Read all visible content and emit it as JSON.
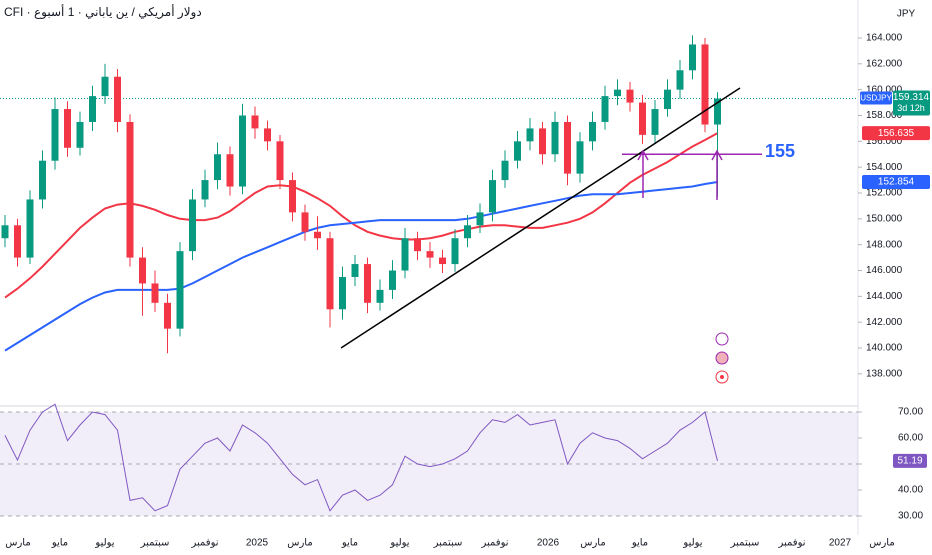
{
  "chart_data": [
    {
      "type": "candlestick",
      "title": "دولار أمريكي / ين ياباني · 1 أسبوع · CFI",
      "symbol": "USDJPY",
      "currency": "JPY",
      "countdown": "3d 12h",
      "x": [
        0,
        1,
        2,
        3,
        4,
        5,
        6,
        7,
        8,
        9,
        10,
        11,
        12,
        13,
        14,
        15,
        16,
        17,
        18,
        19,
        20,
        21,
        22,
        23,
        24,
        25,
        26,
        27,
        28,
        29,
        30,
        31,
        32,
        33,
        34,
        35,
        36,
        37,
        38,
        39,
        40,
        41,
        42,
        43,
        44,
        45,
        46,
        47,
        48,
        49,
        50,
        51,
        52,
        53,
        54,
        55,
        56,
        57
      ],
      "open": [
        148.5,
        149.5,
        147.0,
        151.5,
        154.5,
        158.5,
        155.5,
        157.5,
        159.5,
        161.0,
        157.5,
        147.0,
        145.0,
        143.5,
        141.5,
        147.5,
        151.5,
        153.0,
        155.0,
        152.5,
        158.0,
        157.0,
        156.0,
        153.0,
        150.5,
        149.0,
        148.5,
        143.0,
        145.5,
        146.5,
        143.5,
        144.5,
        146.0,
        148.5,
        147.5,
        147.0,
        146.5,
        148.5,
        149.5,
        150.5,
        153.0,
        154.5,
        156.0,
        157.0,
        155.0,
        157.5,
        153.5,
        156.0,
        157.5,
        159.5,
        160.0,
        159.0,
        156.5,
        158.5,
        160.0,
        161.5,
        163.5,
        157.3
      ],
      "high": [
        150.3,
        150.0,
        152.2,
        155.3,
        159.4,
        159.1,
        158.3,
        160.3,
        162.0,
        161.6,
        158.1,
        147.8,
        146.0,
        144.2,
        148.2,
        152.3,
        153.8,
        155.9,
        155.6,
        158.9,
        158.7,
        157.6,
        156.5,
        153.6,
        151.1,
        150.2,
        149.0,
        146.3,
        147.2,
        147.0,
        145.3,
        146.8,
        149.3,
        149.0,
        148.2,
        147.6,
        149.2,
        150.3,
        151.2,
        153.8,
        155.3,
        156.8,
        157.8,
        157.5,
        158.3,
        158.0,
        156.7,
        158.3,
        160.3,
        160.8,
        160.6,
        159.6,
        159.2,
        160.8,
        162.3,
        164.2,
        164.0,
        159.8
      ],
      "low": [
        147.8,
        146.3,
        146.5,
        150.8,
        153.8,
        154.8,
        154.9,
        156.8,
        158.9,
        156.7,
        146.3,
        142.5,
        142.8,
        139.6,
        140.9,
        146.8,
        150.9,
        152.3,
        151.8,
        151.9,
        156.2,
        155.3,
        152.3,
        149.8,
        148.3,
        147.6,
        141.6,
        142.2,
        144.8,
        142.7,
        142.9,
        143.8,
        145.4,
        146.8,
        146.2,
        145.8,
        145.9,
        147.8,
        148.9,
        149.8,
        152.4,
        153.9,
        155.3,
        154.2,
        154.4,
        152.6,
        152.8,
        155.3,
        156.9,
        158.8,
        158.3,
        155.8,
        155.9,
        157.9,
        159.3,
        160.8,
        156.7,
        151.7
      ],
      "close": [
        149.5,
        147.0,
        151.5,
        154.5,
        158.5,
        155.5,
        157.5,
        159.5,
        161.0,
        157.5,
        147.0,
        145.0,
        143.5,
        141.5,
        147.5,
        151.5,
        153.0,
        155.0,
        152.5,
        158.0,
        157.0,
        156.0,
        153.0,
        150.5,
        149.0,
        148.5,
        143.0,
        145.5,
        146.5,
        143.5,
        144.5,
        146.0,
        148.5,
        147.5,
        147.0,
        146.5,
        148.5,
        149.5,
        150.5,
        153.0,
        154.5,
        156.0,
        157.0,
        155.0,
        157.5,
        153.5,
        156.0,
        157.5,
        159.5,
        160.0,
        159.0,
        156.5,
        158.5,
        160.0,
        161.5,
        163.5,
        157.3,
        159.314
      ],
      "up_color": "#089981",
      "down_color": "#f23645",
      "lines": [
        {
          "color": "#f23645",
          "values": [
            143.9,
            144.6,
            145.4,
            146.3,
            147.3,
            148.3,
            149.3,
            150.1,
            150.8,
            151.1,
            151.2,
            151.0,
            150.7,
            150.3,
            150.0,
            149.9,
            149.9,
            150.1,
            150.6,
            151.3,
            152.0,
            152.5,
            152.6,
            152.5,
            152.1,
            151.6,
            151.0,
            150.2,
            149.5,
            149.0,
            148.7,
            148.5,
            148.4,
            148.4,
            148.5,
            148.7,
            149.0,
            149.2,
            149.4,
            149.5,
            149.5,
            149.4,
            149.3,
            149.3,
            149.5,
            149.7,
            150.0,
            150.5,
            151.2,
            152.0,
            152.8,
            153.4,
            153.9,
            154.4,
            155.0,
            155.6,
            156.1,
            156.635
          ]
        },
        {
          "color": "#2962ff",
          "values": [
            139.8,
            140.4,
            141.0,
            141.6,
            142.2,
            142.8,
            143.4,
            143.9,
            144.3,
            144.5,
            144.5,
            144.5,
            144.5,
            144.5,
            144.6,
            145.0,
            145.5,
            146.0,
            146.5,
            147.0,
            147.4,
            147.8,
            148.2,
            148.6,
            149.0,
            149.3,
            149.5,
            149.6,
            149.7,
            149.8,
            149.9,
            149.9,
            149.9,
            149.9,
            149.9,
            149.9,
            149.9,
            150.0,
            150.2,
            150.4,
            150.6,
            150.8,
            151.0,
            151.2,
            151.4,
            151.6,
            151.8,
            151.9,
            151.9,
            151.9,
            152.0,
            152.1,
            152.2,
            152.3,
            152.4,
            152.5,
            152.7,
            152.854
          ]
        }
      ],
      "level": 155,
      "level_color": "#9c27b0",
      "xlim": [
        -0.4,
        74.16
      ],
      "xticks": [
        {
          "value": 1.04,
          "label": "مارس"
        },
        {
          "value": 4.4,
          "label": "مايو"
        },
        {
          "value": 8.0,
          "label": "يوليو"
        },
        {
          "value": 12.0,
          "label": "سبتمبر"
        },
        {
          "value": 16.0,
          "label": "نوفمبر"
        },
        {
          "value": 20.16,
          "label": "2025"
        },
        {
          "value": 23.6,
          "label": "مارس"
        },
        {
          "value": 27.6,
          "label": "مايو"
        },
        {
          "value": 31.6,
          "label": "يوليو"
        },
        {
          "value": 35.44,
          "label": "سبتمبر"
        },
        {
          "value": 39.2,
          "label": "نوفمبر"
        },
        {
          "value": 43.44,
          "label": "2026"
        },
        {
          "value": 47.04,
          "label": "مارس"
        },
        {
          "value": 50.8,
          "label": "مايو"
        },
        {
          "value": 55.04,
          "label": "يوليو"
        },
        {
          "value": 59.2,
          "label": "سبتمبر"
        },
        {
          "value": 62.96,
          "label": "نوفمبر"
        },
        {
          "value": 66.8,
          "label": "2027"
        },
        {
          "value": 70.16,
          "label": "مارس"
        }
      ],
      "ylim": [
        135.59,
        166.94
      ],
      "yticks": [
        {
          "value": 138,
          "label": "138.000"
        },
        {
          "value": 140,
          "label": "140.000"
        },
        {
          "value": 142,
          "label": "142.000"
        },
        {
          "value": 144,
          "label": "144.000"
        },
        {
          "value": 146,
          "label": "146.000"
        },
        {
          "value": 148,
          "label": "148.000"
        },
        {
          "value": 150,
          "label": "150.000"
        },
        {
          "value": 152,
          "label": "152.000"
        },
        {
          "value": 154,
          "label": "154.000"
        },
        {
          "value": 156,
          "label": "156.000"
        },
        {
          "value": 158,
          "label": "158.000"
        },
        {
          "value": 160,
          "label": "160.000"
        },
        {
          "value": 162,
          "label": "162.000"
        },
        {
          "value": 164,
          "label": "164.000"
        }
      ]
    },
    {
      "type": "line",
      "color": "#7e57c2",
      "values": [
        61,
        51.5,
        63,
        70,
        73,
        59,
        65,
        70,
        69,
        63,
        36,
        37,
        32,
        34,
        48,
        53,
        58,
        60,
        55,
        65,
        62,
        58,
        52,
        46,
        42,
        44,
        32,
        38,
        40,
        36,
        38,
        42,
        53,
        50,
        49,
        50,
        52,
        55,
        62,
        67,
        66,
        69,
        65,
        66,
        67,
        50,
        58,
        62,
        60,
        59,
        56,
        52,
        55,
        58,
        63,
        66,
        70,
        51.19
      ],
      "band": [
        30,
        70
      ],
      "midline": 50,
      "ylim": [
        22.69,
        71.54
      ],
      "yticks": [
        {
          "value": 30,
          "label": "30.00"
        },
        {
          "value": 40,
          "label": "40.00"
        },
        {
          "value": 50,
          "label": "50.00"
        },
        {
          "value": 60,
          "label": "60.00"
        },
        {
          "value": 70,
          "label": "70.00"
        }
      ]
    }
  ]
}
